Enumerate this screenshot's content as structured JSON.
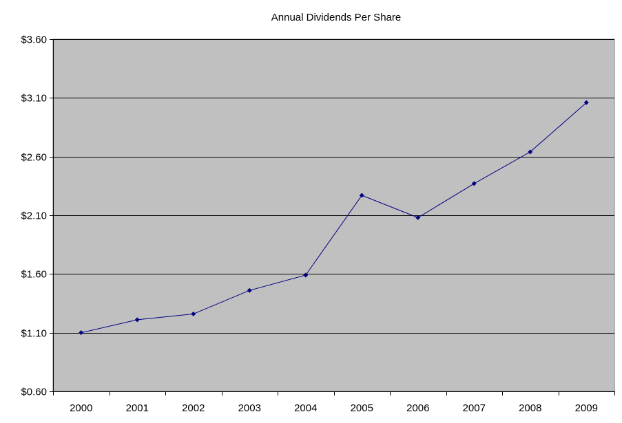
{
  "chart_data": {
    "type": "line",
    "title": "Annual Dividends Per Share",
    "xlabel": "",
    "ylabel": "",
    "categories": [
      "2000",
      "2001",
      "2002",
      "2003",
      "2004",
      "2005",
      "2006",
      "2007",
      "2008",
      "2009"
    ],
    "series": [
      {
        "values": [
          1.1,
          1.21,
          1.26,
          1.46,
          1.59,
          2.27,
          2.08,
          2.37,
          2.64,
          3.06
        ]
      }
    ],
    "ylim": [
      0.6,
      3.6
    ],
    "yticks": [
      0.6,
      1.1,
      1.6,
      2.1,
      2.6,
      3.1,
      3.6
    ],
    "ytick_labels": [
      "$0.60",
      "$1.10",
      "$1.60",
      "$2.10",
      "$2.60",
      "$3.10",
      "$3.60"
    ],
    "grid": "horizontal",
    "legend": "none",
    "colors": {
      "plot_background": "#c0c0c0",
      "line": "#000080",
      "marker": "#000080",
      "gridline": "#000000",
      "axis": "#000000"
    },
    "marker": "diamond"
  }
}
